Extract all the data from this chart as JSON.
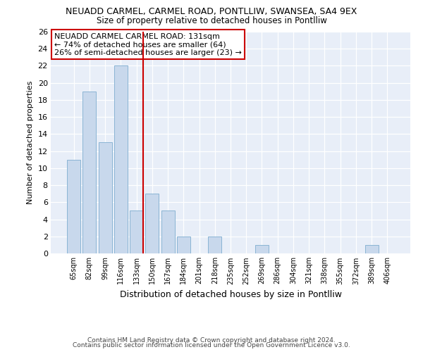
{
  "title1": "NEUADD CARMEL, CARMEL ROAD, PONTLLIW, SWANSEA, SA4 9EX",
  "title2": "Size of property relative to detached houses in Pontlliw",
  "xlabel": "Distribution of detached houses by size in Pontlliw",
  "ylabel": "Number of detached properties",
  "footer1": "Contains HM Land Registry data © Crown copyright and database right 2024.",
  "footer2": "Contains public sector information licensed under the Open Government Licence v3.0.",
  "categories": [
    "65sqm",
    "82sqm",
    "99sqm",
    "116sqm",
    "133sqm",
    "150sqm",
    "167sqm",
    "184sqm",
    "201sqm",
    "218sqm",
    "235sqm",
    "252sqm",
    "269sqm",
    "286sqm",
    "304sqm",
    "321sqm",
    "338sqm",
    "355sqm",
    "372sqm",
    "389sqm",
    "406sqm"
  ],
  "values": [
    11,
    19,
    13,
    22,
    5,
    7,
    5,
    2,
    0,
    2,
    0,
    0,
    1,
    0,
    0,
    0,
    0,
    0,
    0,
    1,
    0
  ],
  "bar_color": "#c8d8ec",
  "bar_edge_color": "#8ab4d4",
  "vline_color": "#cc0000",
  "vline_position": 4.5,
  "annotation_title": "NEUADD CARMEL CARMEL ROAD: 131sqm",
  "annotation_line2": "← 74% of detached houses are smaller (64)",
  "annotation_line3": "26% of semi-detached houses are larger (23) →",
  "annotation_box_facecolor": "#ffffff",
  "annotation_box_edgecolor": "#cc0000",
  "ylim": [
    0,
    26
  ],
  "yticks": [
    0,
    2,
    4,
    6,
    8,
    10,
    12,
    14,
    16,
    18,
    20,
    22,
    24,
    26
  ],
  "figure_facecolor": "#ffffff",
  "axes_facecolor": "#e8eef8"
}
